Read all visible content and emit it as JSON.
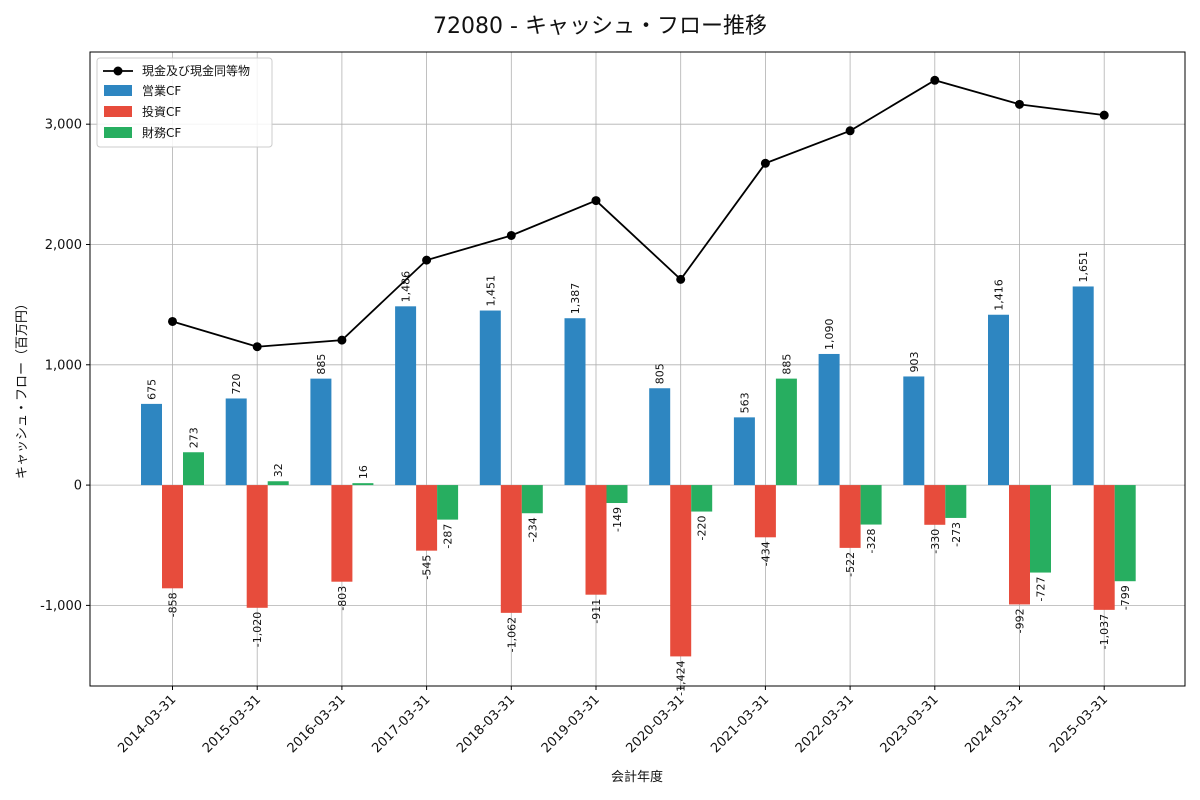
{
  "chart_data": {
    "type": "bar+line",
    "title": "72080 - キャッシュ・フロー推移",
    "xlabel": "会計年度",
    "ylabel": "キャッシュ・フロー（百万円）",
    "ylim": [
      -1670,
      3600
    ],
    "yticks": [
      -1000,
      0,
      1000,
      2000,
      3000
    ],
    "ytick_labels": [
      "-1,000",
      "0",
      "1,000",
      "2,000",
      "3,000"
    ],
    "grid": true,
    "legend_position": "top-left",
    "categories": [
      "2014-03-31",
      "2015-03-31",
      "2016-03-31",
      "2017-03-31",
      "2018-03-31",
      "2019-03-31",
      "2020-03-31",
      "2021-03-31",
      "2022-03-31",
      "2023-03-31",
      "2024-03-31",
      "2025-03-31"
    ],
    "bar_series": [
      {
        "name": "営業CF",
        "color": "#2e86c1",
        "values": [
          675,
          720,
          885,
          1486,
          1451,
          1387,
          805,
          563,
          1090,
          903,
          1416,
          1651
        ],
        "labels": [
          "675",
          "720",
          "885",
          "1,486",
          "1,451",
          "1,387",
          "805",
          "563",
          "1,090",
          "903",
          "1,416",
          "1,651"
        ]
      },
      {
        "name": "投資CF",
        "color": "#e74c3c",
        "values": [
          -858,
          -1020,
          -803,
          -545,
          -1062,
          -911,
          -1424,
          -434,
          -522,
          -330,
          -992,
          -1037
        ],
        "labels": [
          "-858",
          "-1,020",
          "-803",
          "-545",
          "-1,062",
          "-911",
          "-1,424",
          "-434",
          "-522",
          "-330",
          "-992",
          "-1,037"
        ]
      },
      {
        "name": "財務CF",
        "color": "#27ae60",
        "values": [
          273,
          32,
          16,
          -287,
          -234,
          -149,
          -220,
          885,
          -328,
          -273,
          -727,
          -799
        ],
        "labels": [
          "273",
          "32",
          "16",
          "-287",
          "-234",
          "-149",
          "-220",
          "885",
          "-328",
          "-273",
          "-727",
          "-799"
        ]
      }
    ],
    "line_series": {
      "name": "現金及び現金同等物",
      "color": "#000000",
      "values": [
        1360,
        1150,
        1205,
        1870,
        2075,
        2365,
        1710,
        2675,
        2945,
        3365,
        3165,
        3075
      ]
    }
  }
}
